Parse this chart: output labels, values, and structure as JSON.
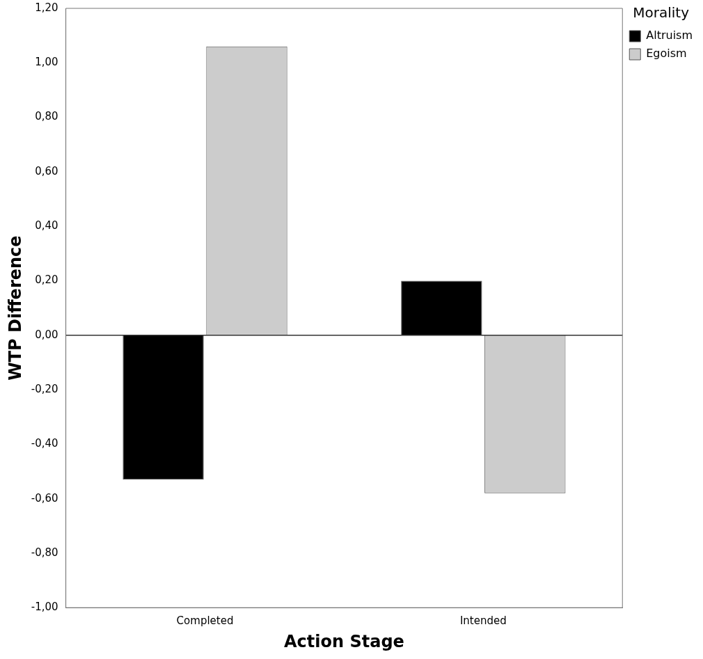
{
  "chart_data": {
    "type": "bar",
    "xlabel": "Action Stage",
    "ylabel": "WTP Difference",
    "legend_title": "Morality",
    "legend": "top right",
    "grid": false,
    "categories": [
      "Completed",
      "Intended"
    ],
    "series": [
      {
        "name": "Altruism",
        "color": "#000000",
        "values": [
          -0.53,
          0.2
        ]
      },
      {
        "name": "Egoism",
        "color": "#cccccc",
        "values": [
          1.06,
          -0.58
        ]
      }
    ],
    "ylim": [
      -1,
      1.2
    ],
    "yticks": [
      {
        "value": -1,
        "label": "-1,00"
      },
      {
        "value": -0.8,
        "label": "-0,80"
      },
      {
        "value": -0.6,
        "label": "-0,60"
      },
      {
        "value": -0.4,
        "label": "-0,40"
      },
      {
        "value": -0.2,
        "label": "-0,20"
      },
      {
        "value": 0,
        "label": "0,00"
      },
      {
        "value": 0.2,
        "label": "0,20"
      },
      {
        "value": 0.4,
        "label": "0,40"
      },
      {
        "value": 0.6,
        "label": "0,60"
      },
      {
        "value": 0.8,
        "label": "0,80"
      },
      {
        "value": 1,
        "label": "1,00"
      },
      {
        "value": 1.2,
        "label": "1,20"
      }
    ],
    "ref_lines": [
      {
        "axis": "y",
        "value": 0
      }
    ]
  }
}
